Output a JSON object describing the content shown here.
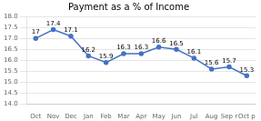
{
  "chart_data": {
    "type": "line",
    "title": "Payment as a % of Income",
    "categories": [
      "Oct",
      "Nov",
      "Dec",
      "Jan",
      "Feb",
      "Mar",
      "Apr",
      "May",
      "Jun",
      "Jul",
      "Aug",
      "Sep r",
      "Oct p"
    ],
    "values": [
      17.0,
      17.4,
      17.1,
      16.2,
      15.9,
      16.3,
      16.3,
      16.6,
      16.5,
      16.1,
      15.6,
      15.7,
      15.3
    ],
    "color": "#4472C4",
    "marker": "circle",
    "ylim": [
      14,
      18
    ],
    "yticks": [
      {
        "value": 14,
        "label": "14.0"
      },
      {
        "value": 14.5,
        "label": "14.5"
      },
      {
        "value": 15,
        "label": "15.0"
      },
      {
        "value": 15.5,
        "label": "15.5"
      },
      {
        "value": 16,
        "label": "16.0"
      },
      {
        "value": 16.5,
        "label": "16.5"
      },
      {
        "value": 17,
        "label": "17.0"
      },
      {
        "value": 17.5,
        "label": "17.5"
      },
      {
        "value": 18,
        "label": "18.0"
      }
    ],
    "grid": true,
    "data_labels": true
  }
}
